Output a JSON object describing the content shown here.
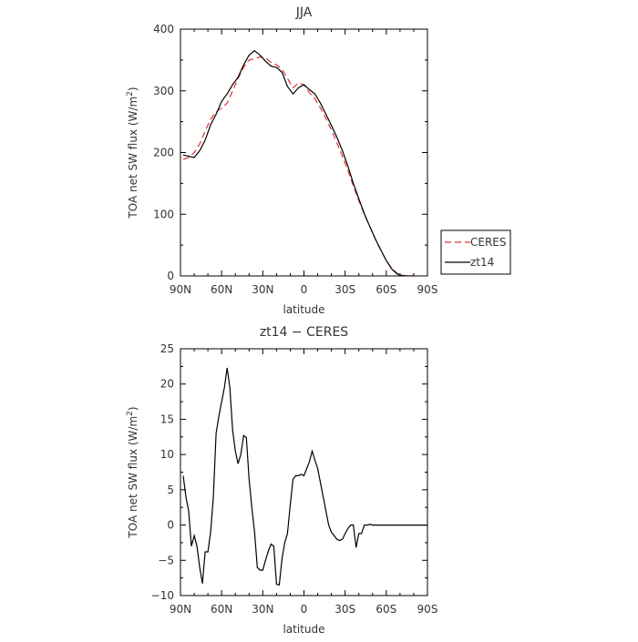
{
  "chart_data": [
    {
      "type": "line",
      "title": "JJA",
      "xlabel": "latitude",
      "ylabel": "TOA net SW flux (W/m",
      "ylabel_sup": "2",
      "ylabel_close": ")",
      "x_ticks": [
        {
          "value": 90,
          "label": "90N"
        },
        {
          "value": 60,
          "label": "60N"
        },
        {
          "value": 30,
          "label": "30N"
        },
        {
          "value": 0,
          "label": "0"
        },
        {
          "value": -30,
          "label": "30S"
        },
        {
          "value": -60,
          "label": "60S"
        },
        {
          "value": -90,
          "label": "90S"
        }
      ],
      "xlim": [
        90,
        -90
      ],
      "ylim": [
        0,
        400
      ],
      "y_ticks": [
        {
          "value": 0,
          "label": "0"
        },
        {
          "value": 100,
          "label": "100"
        },
        {
          "value": 200,
          "label": "200"
        },
        {
          "value": 300,
          "label": "300"
        },
        {
          "value": 400,
          "label": "400"
        }
      ],
      "legend_position": "right",
      "series": [
        {
          "name": "CERES",
          "color": "#e03030",
          "dash": "7,4",
          "x": [
            88,
            84,
            80,
            76,
            72,
            68,
            64,
            60,
            56,
            52,
            48,
            44,
            40,
            36,
            32,
            28,
            24,
            20,
            16,
            12,
            8,
            4,
            0,
            -4,
            -8,
            -12,
            -16,
            -20,
            -24,
            -28,
            -32,
            -36,
            -40,
            -44,
            -48,
            -52,
            -56,
            -60,
            -64,
            -68,
            -72,
            -76,
            -80
          ],
          "y": [
            189,
            192,
            200,
            214,
            235,
            254,
            266,
            272,
            280,
            300,
            320,
            338,
            350,
            352,
            355,
            353,
            346,
            342,
            335,
            320,
            305,
            313,
            310,
            297,
            287,
            272,
            255,
            237,
            216,
            194,
            171,
            146,
            122,
            100,
            80,
            60,
            42,
            25,
            12,
            4,
            1,
            0,
            0
          ]
        },
        {
          "name": "zt14",
          "color": "#000000",
          "dash": "",
          "x": [
            88,
            84,
            80,
            76,
            72,
            68,
            64,
            60,
            56,
            52,
            48,
            44,
            40,
            36,
            32,
            28,
            24,
            20,
            16,
            12,
            8,
            4,
            0,
            -4,
            -8,
            -12,
            -16,
            -20,
            -24,
            -28,
            -32,
            -36,
            -40,
            -44,
            -48,
            -52,
            -56,
            -60,
            -64,
            -68,
            -72,
            -76,
            -80
          ],
          "y": [
            196,
            194,
            192,
            203,
            220,
            245,
            262,
            283,
            295,
            310,
            322,
            342,
            358,
            365,
            358,
            348,
            340,
            338,
            330,
            307,
            295,
            305,
            310,
            302,
            295,
            280,
            262,
            244,
            225,
            203,
            178,
            150,
            125,
            101,
            80,
            60,
            42,
            25,
            11,
            3,
            0,
            0,
            0
          ]
        }
      ]
    },
    {
      "type": "line",
      "title": "zt14 − CERES",
      "xlabel": "latitude",
      "ylabel": "TOA net SW flux (W/m",
      "ylabel_sup": "2",
      "ylabel_close": ")",
      "x_ticks": [
        {
          "value": 90,
          "label": "90N"
        },
        {
          "value": 60,
          "label": "60N"
        },
        {
          "value": 30,
          "label": "30N"
        },
        {
          "value": 0,
          "label": "0"
        },
        {
          "value": -30,
          "label": "30S"
        },
        {
          "value": -60,
          "label": "60S"
        },
        {
          "value": -90,
          "label": "90S"
        }
      ],
      "xlim": [
        90,
        -90
      ],
      "ylim": [
        -10,
        25
      ],
      "y_ticks": [
        {
          "value": -10,
          "label": "−10"
        },
        {
          "value": -5,
          "label": "−5"
        },
        {
          "value": 0,
          "label": "0"
        },
        {
          "value": 5,
          "label": "5"
        },
        {
          "value": 10,
          "label": "10"
        },
        {
          "value": 15,
          "label": "15"
        },
        {
          "value": 20,
          "label": "20"
        },
        {
          "value": 25,
          "label": "25"
        }
      ],
      "series": [
        {
          "name": "zt14 − CERES",
          "color": "#000000",
          "dash": "",
          "x": [
            88,
            86,
            84,
            82,
            80,
            78,
            76,
            74,
            72,
            70,
            68,
            66,
            64,
            62,
            60,
            58,
            56,
            54,
            52,
            50,
            48,
            46,
            44,
            42,
            40,
            38,
            36,
            34,
            32,
            30,
            28,
            26,
            24,
            22,
            20,
            18,
            16,
            14,
            12,
            10,
            8,
            6,
            4,
            2,
            0,
            -2,
            -4,
            -6,
            -8,
            -10,
            -12,
            -14,
            -16,
            -18,
            -20,
            -22,
            -24,
            -26,
            -28,
            -30,
            -32,
            -34,
            -36,
            -38,
            -40,
            -42,
            -44,
            -46,
            -48,
            -50,
            -52,
            -54,
            -56,
            -58,
            -60,
            -62,
            -64,
            -66,
            -68,
            -70,
            -72,
            -74,
            -76,
            -78,
            -80,
            -82,
            -84,
            -86,
            -88,
            -90
          ],
          "y": [
            7,
            4,
            2,
            -3,
            -1.5,
            -3,
            -6,
            -8.3,
            -3.8,
            -3.8,
            -1,
            4,
            13,
            15.5,
            17.5,
            19.5,
            22.3,
            19.5,
            13.5,
            10.5,
            8.7,
            10,
            12.7,
            12.4,
            6.5,
            2.5,
            -1,
            -6,
            -6.4,
            -6.4,
            -5,
            -3.7,
            -2.7,
            -3,
            -8.4,
            -8.5,
            -4.8,
            -2.5,
            -1.2,
            2.8,
            6.5,
            7,
            7,
            7.2,
            7,
            8,
            9,
            10.5,
            9.2,
            8,
            6,
            4,
            2,
            0,
            -1,
            -1.5,
            -2,
            -2.2,
            -2,
            -1.2,
            -0.5,
            0,
            0,
            -3.2,
            -1.2,
            -1.2,
            0,
            0,
            0.1,
            0,
            0,
            0,
            0,
            0,
            0,
            0,
            0,
            0,
            0,
            0,
            0,
            0,
            0,
            0,
            0,
            0,
            0,
            0,
            0,
            0
          ]
        }
      ]
    }
  ]
}
